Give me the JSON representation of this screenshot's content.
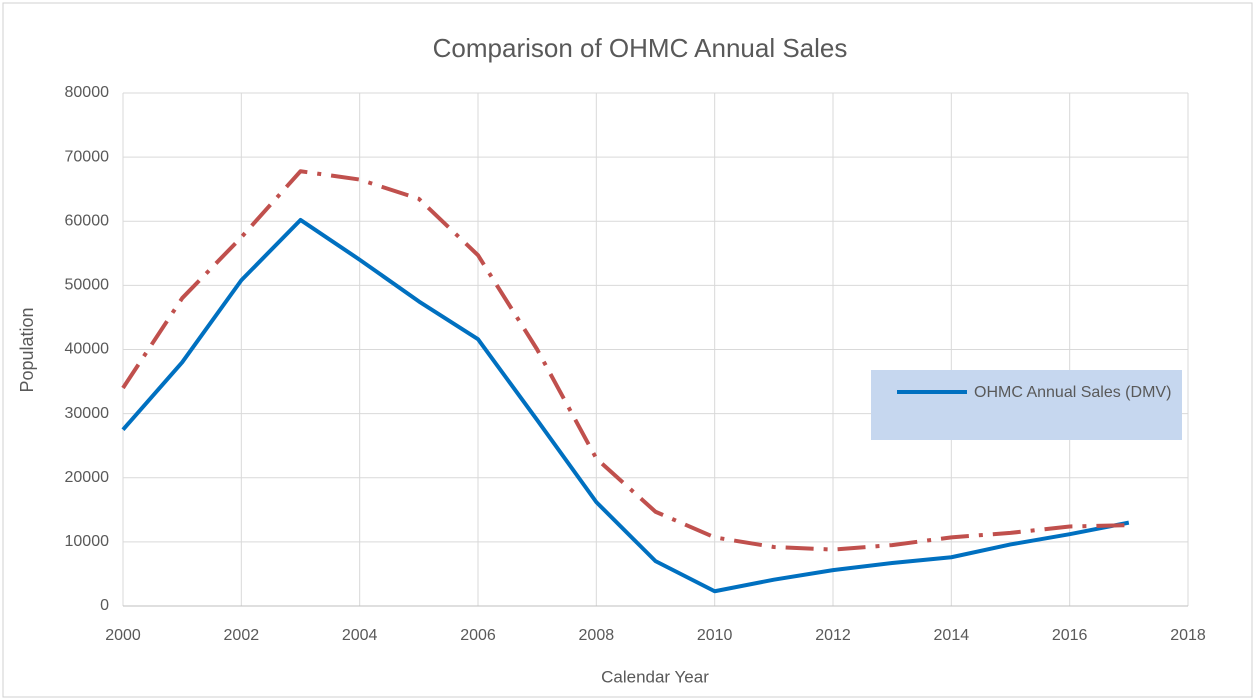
{
  "chart_data": {
    "type": "line",
    "title": "Comparison of OHMC Annual Sales",
    "x_label": "Calendar Year",
    "y_label": "Population",
    "x": [
      2000,
      2001,
      2002,
      2003,
      2004,
      2005,
      2006,
      2007,
      2008,
      2009,
      2010,
      2011,
      2012,
      2013,
      2014,
      2015,
      2016,
      2017
    ],
    "series": [
      {
        "name": "OHMC Annual Sales (DMV)",
        "color": "#0070c0",
        "style": "solid",
        "values": [
          27500,
          38000,
          50800,
          60200,
          54000,
          47500,
          41600,
          29000,
          16200,
          7000,
          2300,
          4100,
          5600,
          6700,
          7600,
          9600,
          11200,
          13000
        ]
      },
      {
        "color": "#c0504d",
        "style": "dashdot",
        "values": [
          34000,
          48000,
          57500,
          67800,
          66500,
          63500,
          54700,
          40000,
          23000,
          14700,
          10700,
          9200,
          8800,
          9500,
          10700,
          11400,
          12400,
          12600
        ]
      }
    ],
    "xlim": [
      2000,
      2018
    ],
    "xticks": [
      2000,
      2002,
      2004,
      2006,
      2008,
      2010,
      2012,
      2014,
      2016,
      2018
    ],
    "ylim": [
      0,
      80000
    ],
    "yticks": [
      0,
      10000,
      20000,
      30000,
      40000,
      50000,
      60000,
      70000,
      80000
    ],
    "grid": true,
    "legend_position": "right"
  }
}
